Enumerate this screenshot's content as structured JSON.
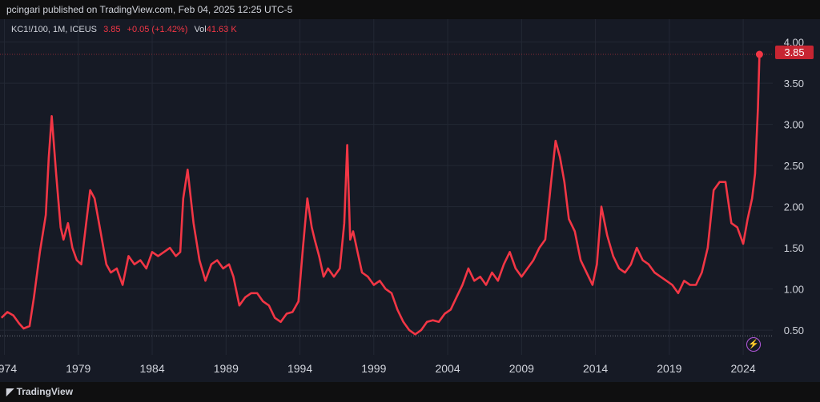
{
  "header": {
    "publisher_text": "pcingari published on TradingView.com, Feb 04, 2025 12:25 UTC-5"
  },
  "legend": {
    "symbol": "KC1!/100, 1M, ICEUS",
    "price": "3.85",
    "change": "+0.05 (+1.42%)",
    "vol_label": "Vol",
    "vol_value": "41.63 K"
  },
  "footer": {
    "brand": "TradingView"
  },
  "colors": {
    "line": "#f23645",
    "background": "#161a25",
    "grid": "#232834",
    "text": "#d1d4dc"
  },
  "icons": {
    "alert": "lightning-icon"
  },
  "chart_data": {
    "type": "line",
    "y_ticks": [
      "4.00",
      "3.50",
      "3.00",
      "2.50",
      "2.00",
      "1.50",
      "1.00",
      "0.50"
    ],
    "y_tick_values": [
      4.0,
      3.5,
      3.0,
      2.5,
      2.0,
      1.5,
      1.0,
      0.5
    ],
    "x_ticks": [
      "1974",
      "1979",
      "1984",
      "1989",
      "1994",
      "1999",
      "2004",
      "2009",
      "2014",
      "2019",
      "2024"
    ],
    "x_tick_values": [
      1974,
      1979,
      1984,
      1989,
      1994,
      1999,
      2004,
      2009,
      2014,
      2019,
      2024
    ],
    "xlim": [
      1973.7,
      2026.0
    ],
    "ylim": [
      0.2,
      4.2
    ],
    "last_price_label": "3.85",
    "last_price": 3.85,
    "range_low": 0.43,
    "series": [
      {
        "x": [
          1973.8,
          1974.2,
          1974.6,
          1975.0,
          1975.3,
          1975.7,
          1976.0,
          1976.4,
          1976.8,
          1977.0,
          1977.2,
          1977.5,
          1977.8,
          1978.0,
          1978.3,
          1978.6,
          1978.9,
          1979.2,
          1979.5,
          1979.8,
          1980.1,
          1980.5,
          1980.9,
          1981.2,
          1981.6,
          1982.0,
          1982.4,
          1982.8,
          1983.2,
          1983.6,
          1984.0,
          1984.4,
          1984.8,
          1985.2,
          1985.6,
          1985.9,
          1986.1,
          1986.4,
          1986.8,
          1987.2,
          1987.6,
          1988.0,
          1988.4,
          1988.8,
          1989.2,
          1989.5,
          1989.9,
          1990.3,
          1990.7,
          1991.1,
          1991.5,
          1991.9,
          1992.3,
          1992.7,
          1993.1,
          1993.5,
          1993.9,
          1994.2,
          1994.5,
          1994.8,
          1995.0,
          1995.3,
          1995.6,
          1995.9,
          1996.3,
          1996.7,
          1997.0,
          1997.2,
          1997.4,
          1997.6,
          1997.9,
          1998.2,
          1998.6,
          1999.0,
          1999.4,
          1999.8,
          2000.2,
          2000.6,
          2001.0,
          2001.4,
          2001.8,
          2002.2,
          2002.6,
          2003.0,
          2003.4,
          2003.8,
          2004.2,
          2004.6,
          2005.0,
          2005.4,
          2005.8,
          2006.2,
          2006.6,
          2007.0,
          2007.4,
          2007.8,
          2008.2,
          2008.6,
          2009.0,
          2009.4,
          2009.8,
          2010.2,
          2010.6,
          2011.0,
          2011.3,
          2011.6,
          2011.9,
          2012.2,
          2012.6,
          2013.0,
          2013.4,
          2013.8,
          2014.1,
          2014.4,
          2014.8,
          2015.2,
          2015.6,
          2016.0,
          2016.4,
          2016.8,
          2017.2,
          2017.6,
          2018.0,
          2018.4,
          2018.8,
          2019.2,
          2019.6,
          2020.0,
          2020.4,
          2020.8,
          2021.2,
          2021.6,
          2022.0,
          2022.4,
          2022.8,
          2023.2,
          2023.6,
          2024.0,
          2024.3,
          2024.6,
          2024.8,
          2025.0,
          2025.1
        ],
        "y": [
          0.65,
          0.72,
          0.68,
          0.58,
          0.52,
          0.55,
          0.9,
          1.45,
          1.9,
          2.6,
          3.1,
          2.4,
          1.75,
          1.6,
          1.8,
          1.5,
          1.35,
          1.3,
          1.75,
          2.2,
          2.1,
          1.7,
          1.3,
          1.2,
          1.25,
          1.05,
          1.4,
          1.3,
          1.35,
          1.25,
          1.45,
          1.4,
          1.45,
          1.5,
          1.4,
          1.45,
          2.1,
          2.45,
          1.8,
          1.35,
          1.1,
          1.3,
          1.35,
          1.25,
          1.3,
          1.15,
          0.8,
          0.9,
          0.95,
          0.95,
          0.85,
          0.8,
          0.65,
          0.6,
          0.7,
          0.72,
          0.85,
          1.5,
          2.1,
          1.75,
          1.6,
          1.4,
          1.15,
          1.25,
          1.15,
          1.25,
          1.8,
          2.75,
          1.6,
          1.7,
          1.45,
          1.2,
          1.15,
          1.05,
          1.1,
          1.0,
          0.95,
          0.75,
          0.6,
          0.5,
          0.45,
          0.5,
          0.6,
          0.62,
          0.6,
          0.7,
          0.75,
          0.9,
          1.05,
          1.25,
          1.1,
          1.15,
          1.05,
          1.2,
          1.1,
          1.3,
          1.45,
          1.25,
          1.15,
          1.25,
          1.35,
          1.5,
          1.6,
          2.3,
          2.8,
          2.6,
          2.3,
          1.85,
          1.7,
          1.35,
          1.2,
          1.05,
          1.3,
          2.0,
          1.65,
          1.4,
          1.25,
          1.2,
          1.3,
          1.5,
          1.35,
          1.3,
          1.2,
          1.15,
          1.1,
          1.05,
          0.95,
          1.1,
          1.05,
          1.05,
          1.2,
          1.5,
          2.2,
          2.3,
          2.3,
          1.8,
          1.75,
          1.55,
          1.85,
          2.1,
          2.4,
          3.2,
          3.85
        ]
      }
    ]
  }
}
